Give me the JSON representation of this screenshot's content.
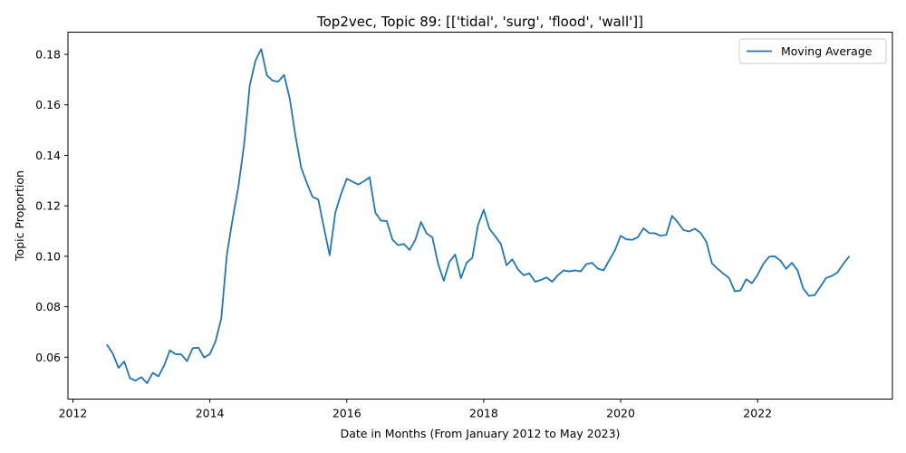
{
  "chart_data": {
    "type": "line",
    "title": "Top2vec, Topic 89: [['tidal', 'surg', 'flood', 'wall']]",
    "xlabel": "Date in Months (From January 2012 to May 2023)",
    "ylabel": "Topic Proportion",
    "xlim": [
      "2011-12-05",
      "2023-12-20"
    ],
    "ylim": [
      0.0434,
      0.1888
    ],
    "x_ticks": [
      "2012",
      "2014",
      "2016",
      "2018",
      "2020",
      "2022"
    ],
    "y_ticks": [
      "0.06",
      "0.08",
      "0.10",
      "0.12",
      "0.14",
      "0.16",
      "0.18"
    ],
    "grid": false,
    "legend": {
      "position": "top-right",
      "entries": [
        "Moving Average"
      ]
    },
    "line_color": "#1f77b4",
    "series": [
      {
        "name": "Moving Average",
        "x": [
          "2012-07",
          "2012-08",
          "2012-09",
          "2012-10",
          "2012-11",
          "2012-12",
          "2013-01",
          "2013-02",
          "2013-03",
          "2013-04",
          "2013-05",
          "2013-06",
          "2013-07",
          "2013-08",
          "2013-09",
          "2013-10",
          "2013-11",
          "2013-12",
          "2014-01",
          "2014-02",
          "2014-03",
          "2014-04",
          "2014-05",
          "2014-06",
          "2014-07",
          "2014-08",
          "2014-09",
          "2014-10",
          "2014-11",
          "2014-12",
          "2015-01",
          "2015-02",
          "2015-03",
          "2015-04",
          "2015-05",
          "2015-06",
          "2015-07",
          "2015-08",
          "2015-09",
          "2015-10",
          "2015-11",
          "2015-12",
          "2016-01",
          "2016-02",
          "2016-03",
          "2016-04",
          "2016-05",
          "2016-06",
          "2016-07",
          "2016-08",
          "2016-09",
          "2016-10",
          "2016-11",
          "2016-12",
          "2017-01",
          "2017-02",
          "2017-03",
          "2017-04",
          "2017-05",
          "2017-06",
          "2017-07",
          "2017-08",
          "2017-09",
          "2017-10",
          "2017-11",
          "2017-12",
          "2018-01",
          "2018-02",
          "2018-03",
          "2018-04",
          "2018-05",
          "2018-06",
          "2018-07",
          "2018-08",
          "2018-09",
          "2018-10",
          "2018-11",
          "2018-12",
          "2019-01",
          "2019-02",
          "2019-03",
          "2019-04",
          "2019-05",
          "2019-06",
          "2019-07",
          "2019-08",
          "2019-09",
          "2019-10",
          "2019-11",
          "2019-12",
          "2020-01",
          "2020-02",
          "2020-03",
          "2020-04",
          "2020-05",
          "2020-06",
          "2020-07",
          "2020-08",
          "2020-09",
          "2020-10",
          "2020-11",
          "2020-12",
          "2021-01",
          "2021-02",
          "2021-03",
          "2021-04",
          "2021-05",
          "2021-06",
          "2021-07",
          "2021-08",
          "2021-09",
          "2021-10",
          "2021-11",
          "2021-12",
          "2022-01",
          "2022-02",
          "2022-03",
          "2022-04",
          "2022-05",
          "2022-06",
          "2022-07",
          "2022-08",
          "2022-09",
          "2022-10",
          "2022-11",
          "2022-12",
          "2023-01",
          "2023-02",
          "2023-03",
          "2023-04",
          "2023-05"
        ],
        "y": [
          0.0648,
          0.0614,
          0.0558,
          0.0583,
          0.0517,
          0.0507,
          0.0521,
          0.0497,
          0.0538,
          0.0524,
          0.0568,
          0.0627,
          0.0612,
          0.0611,
          0.0584,
          0.0636,
          0.0638,
          0.0599,
          0.0612,
          0.0663,
          0.0753,
          0.1009,
          0.1149,
          0.1275,
          0.1442,
          0.1677,
          0.1775,
          0.1821,
          0.1717,
          0.1696,
          0.1692,
          0.1719,
          0.1625,
          0.1478,
          0.1352,
          0.129,
          0.1235,
          0.1225,
          0.1113,
          0.1004,
          0.1174,
          0.1247,
          0.1307,
          0.1296,
          0.1284,
          0.1297,
          0.1313,
          0.1173,
          0.1141,
          0.114,
          0.1066,
          0.1044,
          0.1049,
          0.1025,
          0.1064,
          0.1136,
          0.109,
          0.1075,
          0.0971,
          0.0903,
          0.0978,
          0.1007,
          0.0913,
          0.0974,
          0.0994,
          0.1124,
          0.1184,
          0.1109,
          0.108,
          0.1049,
          0.0964,
          0.0988,
          0.0948,
          0.0925,
          0.0932,
          0.0899,
          0.0906,
          0.0916,
          0.0899,
          0.0925,
          0.0944,
          0.094,
          0.0944,
          0.094,
          0.0969,
          0.0974,
          0.0951,
          0.0944,
          0.0984,
          0.1024,
          0.1081,
          0.1067,
          0.1065,
          0.1075,
          0.1111,
          0.1092,
          0.1091,
          0.1081,
          0.1085,
          0.116,
          0.1135,
          0.1104,
          0.1098,
          0.1109,
          0.1093,
          0.1058,
          0.0972,
          0.095,
          0.0931,
          0.0914,
          0.0861,
          0.0865,
          0.0909,
          0.0893,
          0.0926,
          0.097,
          0.0998,
          0.1,
          0.0983,
          0.095,
          0.0974,
          0.0944,
          0.0872,
          0.0843,
          0.0846,
          0.0879,
          0.0914,
          0.0922,
          0.0936,
          0.0969,
          0.0998
        ]
      }
    ]
  }
}
